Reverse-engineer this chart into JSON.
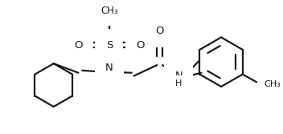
{
  "line_color": "#1a1a1a",
  "bg_color": "#ffffff",
  "line_width": 1.6,
  "figsize": [
    3.52,
    1.67
  ],
  "dpi": 100,
  "S_label": "S",
  "N_label": "N",
  "O_label": "O",
  "NH_label": "NH",
  "H_label": "H",
  "CH3_top": "CH₃",
  "CH3_meta": "CH₃"
}
